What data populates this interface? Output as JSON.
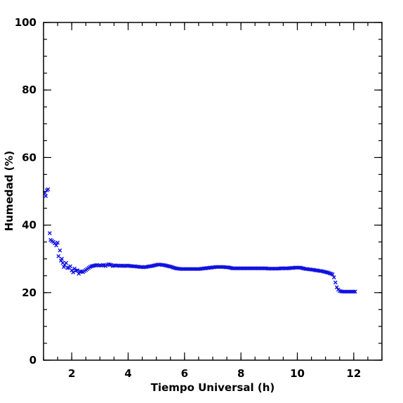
{
  "chart_data": {
    "type": "scatter",
    "xlabel": "Tiempo Universal (h)",
    "ylabel": "Humedad (%)",
    "xlim": [
      1.0,
      13.0
    ],
    "ylim": [
      0,
      100
    ],
    "x_major_ticks": [
      2,
      4,
      6,
      8,
      10,
      12
    ],
    "y_major_ticks": [
      0,
      20,
      40,
      60,
      80,
      100
    ],
    "x_tick_labels": [
      "2",
      "4",
      "6",
      "8",
      "10",
      "12"
    ],
    "y_tick_labels": [
      "0",
      "20",
      "40",
      "60",
      "80",
      "100"
    ],
    "x_minor_step": 0.5,
    "y_minor_step": 5,
    "marker": "x",
    "grid": false,
    "color": "#1010e0",
    "points": [
      [
        1.05,
        49.5
      ],
      [
        1.08,
        48.6
      ],
      [
        1.12,
        50.3
      ],
      [
        1.16,
        50.6
      ],
      [
        1.22,
        37.6
      ],
      [
        1.25,
        35.6
      ],
      [
        1.3,
        35.3
      ],
      [
        1.35,
        35.0
      ],
      [
        1.4,
        34.6
      ],
      [
        1.45,
        34.0
      ],
      [
        1.5,
        34.8
      ],
      [
        1.53,
        30.8
      ],
      [
        1.58,
        32.5
      ],
      [
        1.62,
        29.5
      ],
      [
        1.65,
        30.0
      ],
      [
        1.68,
        28.8
      ],
      [
        1.72,
        27.6
      ],
      [
        1.75,
        28.2
      ],
      [
        1.8,
        28.8
      ],
      [
        1.85,
        27.3
      ],
      [
        1.9,
        27.4
      ],
      [
        1.95,
        27.8
      ],
      [
        2.0,
        26.6
      ],
      [
        2.05,
        26.0
      ],
      [
        2.1,
        27.1
      ],
      [
        2.15,
        26.5
      ],
      [
        2.2,
        26.6
      ],
      [
        2.25,
        25.6
      ],
      [
        2.3,
        26.3
      ],
      [
        2.35,
        26.2
      ],
      [
        2.4,
        26.1
      ],
      [
        2.45,
        26.4
      ],
      [
        2.5,
        26.7
      ],
      [
        2.55,
        27.0
      ],
      [
        2.6,
        27.3
      ],
      [
        2.65,
        27.6
      ],
      [
        2.7,
        27.8
      ],
      [
        2.75,
        27.9
      ],
      [
        2.8,
        28.0
      ],
      [
        2.85,
        28.1
      ],
      [
        2.9,
        28.2
      ],
      [
        2.95,
        28.0
      ],
      [
        3.0,
        28.1
      ],
      [
        3.05,
        28.0
      ],
      [
        3.1,
        28.2
      ],
      [
        3.15,
        28.1
      ],
      [
        3.2,
        27.9
      ],
      [
        3.25,
        28.2
      ],
      [
        3.3,
        28.4
      ],
      [
        3.35,
        28.3
      ],
      [
        3.4,
        28.2
      ],
      [
        3.45,
        27.9
      ],
      [
        3.5,
        28.0
      ],
      [
        3.55,
        28.1
      ],
      [
        3.6,
        28.0
      ],
      [
        3.65,
        28.0
      ],
      [
        3.7,
        27.9
      ],
      [
        3.75,
        28.0
      ],
      [
        3.8,
        28.0
      ],
      [
        3.85,
        27.9
      ],
      [
        3.9,
        27.9
      ],
      [
        3.95,
        28.0
      ],
      [
        4.0,
        28.0
      ],
      [
        4.05,
        27.9
      ],
      [
        4.1,
        27.9
      ],
      [
        4.15,
        27.8
      ],
      [
        4.2,
        27.8
      ],
      [
        4.25,
        27.8
      ],
      [
        4.3,
        27.7
      ],
      [
        4.35,
        27.7
      ],
      [
        4.4,
        27.6
      ],
      [
        4.45,
        27.6
      ],
      [
        4.5,
        27.6
      ],
      [
        4.55,
        27.5
      ],
      [
        4.6,
        27.6
      ],
      [
        4.65,
        27.6
      ],
      [
        4.7,
        27.7
      ],
      [
        4.75,
        27.8
      ],
      [
        4.8,
        27.8
      ],
      [
        4.85,
        27.9
      ],
      [
        4.9,
        28.0
      ],
      [
        4.95,
        28.1
      ],
      [
        5.0,
        28.2
      ],
      [
        5.05,
        28.3
      ],
      [
        5.1,
        28.3
      ],
      [
        5.15,
        28.3
      ],
      [
        5.2,
        28.2
      ],
      [
        5.25,
        28.2
      ],
      [
        5.3,
        28.1
      ],
      [
        5.35,
        28.0
      ],
      [
        5.4,
        27.9
      ],
      [
        5.45,
        27.8
      ],
      [
        5.5,
        27.7
      ],
      [
        5.55,
        27.6
      ],
      [
        5.6,
        27.4
      ],
      [
        5.65,
        27.3
      ],
      [
        5.7,
        27.2
      ],
      [
        5.75,
        27.1
      ],
      [
        5.8,
        27.1
      ],
      [
        5.85,
        27.0
      ],
      [
        5.9,
        27.0
      ],
      [
        5.95,
        27.0
      ],
      [
        6.0,
        27.0
      ],
      [
        6.05,
        27.0
      ],
      [
        6.1,
        27.0
      ],
      [
        6.15,
        27.0
      ],
      [
        6.2,
        27.0
      ],
      [
        6.25,
        27.0
      ],
      [
        6.3,
        27.0
      ],
      [
        6.35,
        27.0
      ],
      [
        6.4,
        27.0
      ],
      [
        6.45,
        27.0
      ],
      [
        6.5,
        27.0
      ],
      [
        6.55,
        27.0
      ],
      [
        6.6,
        27.1
      ],
      [
        6.65,
        27.1
      ],
      [
        6.7,
        27.2
      ],
      [
        6.75,
        27.2
      ],
      [
        6.8,
        27.3
      ],
      [
        6.85,
        27.3
      ],
      [
        6.9,
        27.4
      ],
      [
        6.95,
        27.4
      ],
      [
        7.0,
        27.5
      ],
      [
        7.05,
        27.5
      ],
      [
        7.1,
        27.6
      ],
      [
        7.15,
        27.6
      ],
      [
        7.2,
        27.6
      ],
      [
        7.25,
        27.6
      ],
      [
        7.3,
        27.6
      ],
      [
        7.35,
        27.6
      ],
      [
        7.4,
        27.6
      ],
      [
        7.45,
        27.5
      ],
      [
        7.5,
        27.5
      ],
      [
        7.55,
        27.5
      ],
      [
        7.6,
        27.4
      ],
      [
        7.65,
        27.3
      ],
      [
        7.7,
        27.2
      ],
      [
        7.75,
        27.2
      ],
      [
        7.8,
        27.2
      ],
      [
        7.85,
        27.2
      ],
      [
        7.9,
        27.2
      ],
      [
        7.95,
        27.2
      ],
      [
        8.0,
        27.2
      ],
      [
        8.05,
        27.2
      ],
      [
        8.1,
        27.2
      ],
      [
        8.15,
        27.2
      ],
      [
        8.2,
        27.2
      ],
      [
        8.25,
        27.2
      ],
      [
        8.3,
        27.2
      ],
      [
        8.35,
        27.2
      ],
      [
        8.4,
        27.2
      ],
      [
        8.45,
        27.2
      ],
      [
        8.5,
        27.2
      ],
      [
        8.55,
        27.2
      ],
      [
        8.6,
        27.2
      ],
      [
        8.65,
        27.2
      ],
      [
        8.7,
        27.2
      ],
      [
        8.75,
        27.2
      ],
      [
        8.8,
        27.2
      ],
      [
        8.85,
        27.2
      ],
      [
        8.9,
        27.2
      ],
      [
        8.95,
        27.1
      ],
      [
        9.0,
        27.1
      ],
      [
        9.05,
        27.1
      ],
      [
        9.1,
        27.1
      ],
      [
        9.15,
        27.1
      ],
      [
        9.2,
        27.1
      ],
      [
        9.25,
        27.1
      ],
      [
        9.3,
        27.1
      ],
      [
        9.35,
        27.1
      ],
      [
        9.4,
        27.2
      ],
      [
        9.45,
        27.2
      ],
      [
        9.5,
        27.2
      ],
      [
        9.55,
        27.2
      ],
      [
        9.6,
        27.2
      ],
      [
        9.65,
        27.2
      ],
      [
        9.7,
        27.2
      ],
      [
        9.75,
        27.3
      ],
      [
        9.8,
        27.3
      ],
      [
        9.85,
        27.3
      ],
      [
        9.9,
        27.4
      ],
      [
        9.95,
        27.4
      ],
      [
        10.0,
        27.4
      ],
      [
        10.05,
        27.4
      ],
      [
        10.1,
        27.4
      ],
      [
        10.15,
        27.3
      ],
      [
        10.2,
        27.2
      ],
      [
        10.25,
        27.1
      ],
      [
        10.3,
        27.0
      ],
      [
        10.35,
        27.0
      ],
      [
        10.4,
        26.9
      ],
      [
        10.45,
        26.9
      ],
      [
        10.5,
        26.8
      ],
      [
        10.55,
        26.8
      ],
      [
        10.6,
        26.7
      ],
      [
        10.65,
        26.6
      ],
      [
        10.7,
        26.6
      ],
      [
        10.75,
        26.5
      ],
      [
        10.8,
        26.4
      ],
      [
        10.85,
        26.4
      ],
      [
        10.9,
        26.3
      ],
      [
        10.95,
        26.2
      ],
      [
        11.0,
        26.1
      ],
      [
        11.05,
        26.0
      ],
      [
        11.1,
        25.9
      ],
      [
        11.15,
        25.7
      ],
      [
        11.2,
        25.6
      ],
      [
        11.25,
        25.4
      ],
      [
        11.3,
        24.5
      ],
      [
        11.35,
        23.0
      ],
      [
        11.4,
        21.6
      ],
      [
        11.45,
        20.9
      ],
      [
        11.5,
        20.5
      ],
      [
        11.55,
        20.4
      ],
      [
        11.6,
        20.3
      ],
      [
        11.65,
        20.3
      ],
      [
        11.7,
        20.3
      ],
      [
        11.75,
        20.3
      ],
      [
        11.8,
        20.3
      ],
      [
        11.85,
        20.3
      ],
      [
        11.9,
        20.3
      ],
      [
        11.95,
        20.3
      ],
      [
        12.0,
        20.3
      ],
      [
        12.05,
        20.3
      ]
    ]
  }
}
